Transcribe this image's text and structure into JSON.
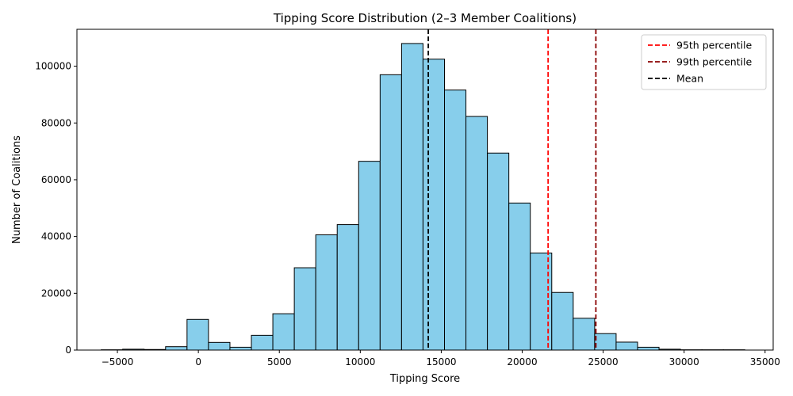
{
  "chart_data": {
    "type": "bar",
    "title": "Tipping Score Distribution (2–3 Member Coalitions)",
    "xlabel": "Tipping Score",
    "ylabel": "Number of Coalitions",
    "xlim": [
      -7500,
      35500
    ],
    "ylim": [
      0,
      113000
    ],
    "x_ticks": [
      -5000,
      0,
      5000,
      10000,
      15000,
      20000,
      25000,
      30000,
      35000
    ],
    "y_ticks": [
      0,
      20000,
      40000,
      60000,
      80000,
      100000
    ],
    "bin_edges": [
      -6000,
      -4675,
      -3350,
      -2025,
      -700,
      625,
      1950,
      3275,
      4600,
      5925,
      7250,
      8575,
      9900,
      11225,
      12550,
      13875,
      15200,
      16525,
      17850,
      19175,
      20500,
      21825,
      23150,
      24475,
      25800,
      27125,
      28450,
      29775,
      31100,
      32425,
      33750
    ],
    "counts": [
      100,
      300,
      200,
      1200,
      10800,
      2700,
      1000,
      5200,
      12800,
      29000,
      40600,
      44200,
      66500,
      97000,
      108000,
      102500,
      91600,
      82300,
      69400,
      51800,
      34200,
      20300,
      11200,
      5800,
      2800,
      1000,
      300,
      100,
      100,
      100
    ],
    "bar_color": "#87CEEB",
    "bar_edge_color": "#000000",
    "reference_lines": [
      {
        "name": "95th percentile",
        "x": 21600,
        "color": "#ff0000"
      },
      {
        "name": "99th percentile",
        "x": 24550,
        "color": "#8b0000"
      },
      {
        "name": "Mean",
        "x": 14200,
        "color": "#000000"
      }
    ],
    "legend": {
      "placement": "top-right"
    },
    "grid": false
  }
}
